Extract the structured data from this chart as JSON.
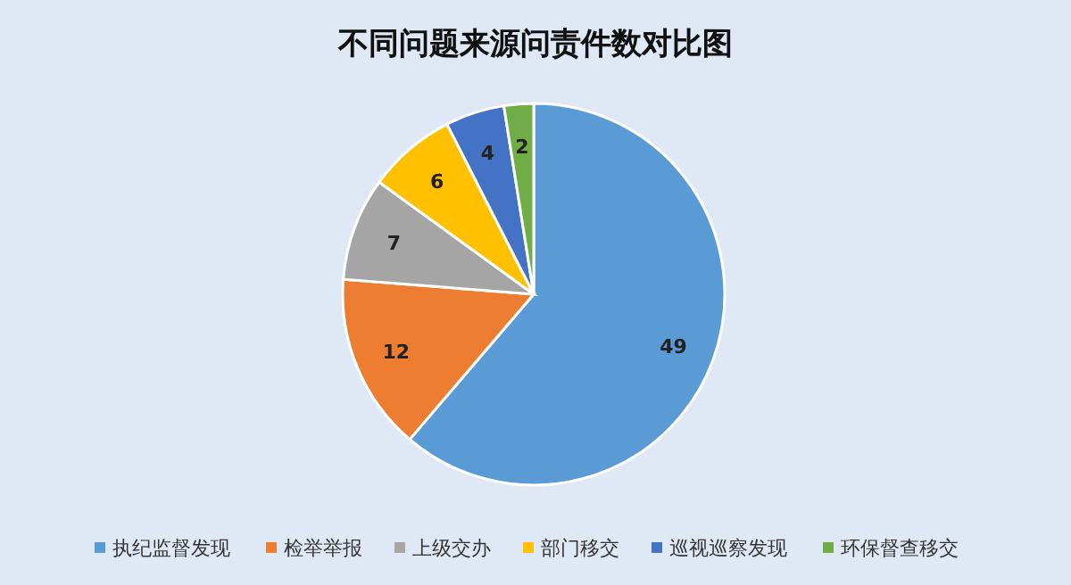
{
  "chart_data": {
    "type": "pie",
    "title": "不同问题来源问责件数对比图",
    "categories": [
      "执纪监督发现",
      "检举举报",
      "上级交办",
      "部门移交",
      "巡视巡察发现",
      "环保督查移交"
    ],
    "values": [
      49,
      12,
      7,
      6,
      4,
      2
    ],
    "colors": [
      "#5b9bd5",
      "#ed7d31",
      "#a5a5a5",
      "#ffc000",
      "#4472c4",
      "#70ad47"
    ],
    "data_labels": true,
    "legend": "bottom"
  }
}
